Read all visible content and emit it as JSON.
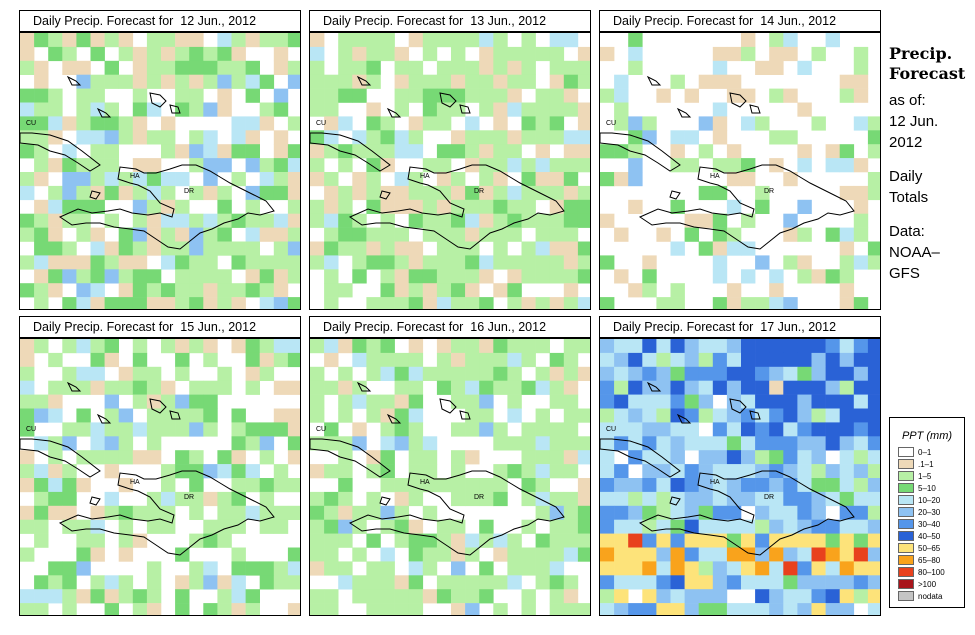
{
  "chart_data": {
    "type": "heatmap",
    "panels": [
      {
        "title": "Daily Precip. Forecast for  12 Jun., 2012",
        "date": "12 Jun., 2012",
        "dominant": ".1–1 to 1–5",
        "max": "20–30"
      },
      {
        "title": "Daily Precip. Forecast for  13 Jun., 2012",
        "date": "13 Jun., 2012",
        "dominant": "1–5",
        "max": "10–20"
      },
      {
        "title": "Daily Precip. Forecast for  14 Jun., 2012",
        "date": "14 Jun., 2012",
        "dominant": "0–1",
        "max": "20–30"
      },
      {
        "title": "Daily Precip. Forecast for  15 Jun., 2012",
        "date": "15 Jun., 2012",
        "dominant": "0–1 to 1–5",
        "max": "20–30"
      },
      {
        "title": "Daily Precip. Forecast for  16 Jun., 2012",
        "date": "16 Jun., 2012",
        "dominant": "1–5",
        "max": "20–30"
      },
      {
        "title": "Daily Precip. Forecast for  17 Jun., 2012",
        "date": "17 Jun., 2012",
        "dominant": "10–20 to 30–40",
        "max": "65–80"
      }
    ],
    "region_labels": [
      "CU",
      "HA",
      "DR"
    ],
    "legend": {
      "title": "PPT (mm)",
      "classes": [
        {
          "label": "0–1",
          "color": "#ffffff"
        },
        {
          "label": ".1–1",
          "color": "#eed9b8"
        },
        {
          "label": "1–5",
          "color": "#b7f0a5"
        },
        {
          "label": "5–10",
          "color": "#77d975"
        },
        {
          "label": "10–20",
          "color": "#b9e6f5"
        },
        {
          "label": "20–30",
          "color": "#8ec2f2"
        },
        {
          "label": "30–40",
          "color": "#5596ea"
        },
        {
          "label": "40–50",
          "color": "#2a62d6"
        },
        {
          "label": "50–65",
          "color": "#fde37a"
        },
        {
          "label": "65–80",
          "color": "#f9a31c"
        },
        {
          "label": "80–100",
          "color": "#e8411d"
        },
        {
          "label": ">100",
          "color": "#a8141b"
        },
        {
          "label": "nodata",
          "color": "#c4c4c4"
        }
      ]
    }
  },
  "side": {
    "heading1": "Precip.",
    "heading2": "Forecast",
    "asof": "as of:",
    "date1": "12 Jun.",
    "date2": "2012",
    "totals1": "Daily",
    "totals2": "Totals",
    "data1": "Data:",
    "data2": "NOAA–",
    "data3": "GFS"
  }
}
